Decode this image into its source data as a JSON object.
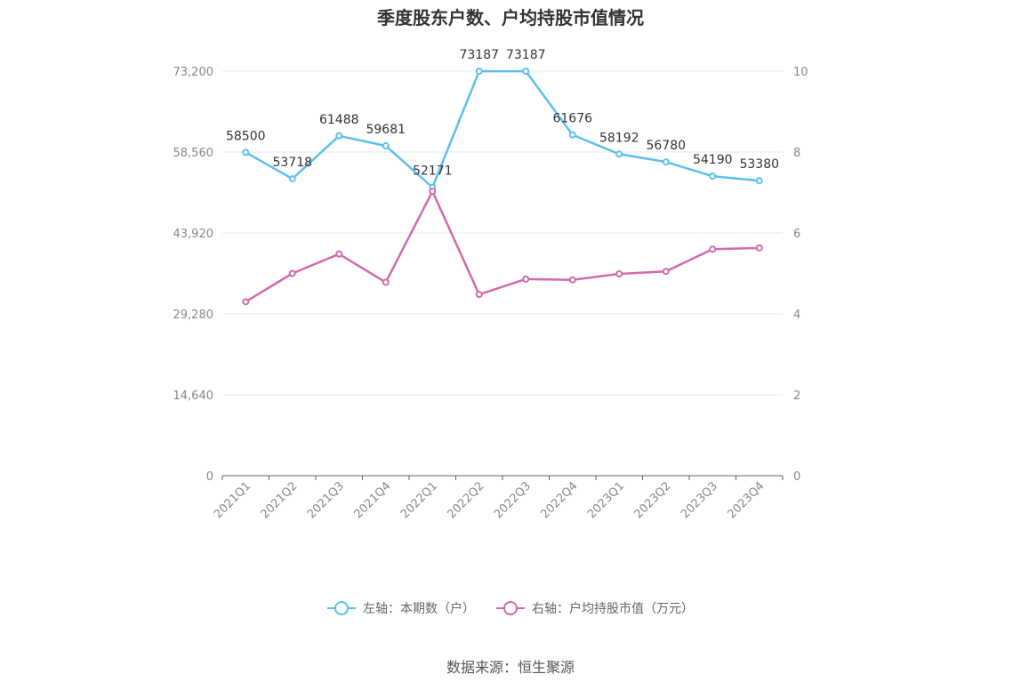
{
  "title": "季度股东户数、户均持股市值情况",
  "source": "数据来源：恒生聚源",
  "legend": [
    {
      "label": "左轴：本期数（户）",
      "color": "#5bc0f0"
    },
    {
      "label": "右轴：户均持股市值（万元）",
      "color": "#d36aa9"
    }
  ],
  "chart_data": {
    "type": "line",
    "categories": [
      "2021Q1",
      "2021Q2",
      "2021Q3",
      "2021Q4",
      "2022Q1",
      "2022Q2",
      "2022Q3",
      "2022Q4",
      "2023Q1",
      "2023Q2",
      "2023Q3",
      "2023Q4"
    ],
    "series": [
      {
        "name": "左轴：本期数（户）",
        "axis": "left",
        "color": "#5bc0f0",
        "values": [
          58500,
          53718,
          61488,
          59681,
          52171,
          73187,
          73187,
          61676,
          58192,
          56780,
          54190,
          53380
        ],
        "data_labels": [
          "58500",
          "53718",
          "61488",
          "59681",
          "52171",
          "73187",
          "73187",
          "61676",
          "58192",
          "56780",
          "54190",
          "53380"
        ]
      },
      {
        "name": "右轴：户均持股市值（万元）",
        "axis": "right",
        "color": "#d36aa9",
        "values": [
          4.3,
          5.0,
          5.48,
          4.78,
          7.03,
          4.48,
          4.86,
          4.84,
          4.99,
          5.05,
          5.6,
          5.63
        ]
      }
    ],
    "left_axis": {
      "min": 0,
      "max": 73200,
      "ticks": [
        0,
        14640,
        29280,
        43920,
        58560,
        73200
      ],
      "tick_labels": [
        "0",
        "14,640",
        "29,280",
        "43,920",
        "58,560",
        "73,200"
      ]
    },
    "right_axis": {
      "min": 0,
      "max": 10,
      "ticks": [
        0,
        2,
        4,
        6,
        8,
        10
      ],
      "tick_labels": [
        "0",
        "2",
        "4",
        "6",
        "8",
        "10"
      ]
    },
    "grid": true,
    "legend_position": "bottom"
  }
}
